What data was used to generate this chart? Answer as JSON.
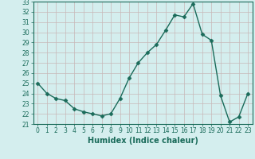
{
  "x": [
    0,
    1,
    2,
    3,
    4,
    5,
    6,
    7,
    8,
    9,
    10,
    11,
    12,
    13,
    14,
    15,
    16,
    17,
    18,
    19,
    20,
    21,
    22,
    23
  ],
  "y": [
    25.0,
    24.0,
    23.5,
    23.3,
    22.5,
    22.2,
    22.0,
    21.8,
    22.0,
    23.5,
    25.5,
    27.0,
    28.0,
    28.8,
    30.2,
    31.7,
    31.5,
    32.8,
    29.8,
    29.2,
    23.8,
    21.2,
    21.7,
    24.0
  ],
  "line_color": "#1a6b5a",
  "marker": "D",
  "marker_size": 2.5,
  "bg_color": "#d4eeee",
  "grid_color": "#c8b8b8",
  "xlabel": "Humidex (Indice chaleur)",
  "ylim": [
    21,
    33
  ],
  "xlim": [
    -0.5,
    23.5
  ],
  "yticks": [
    21,
    22,
    23,
    24,
    25,
    26,
    27,
    28,
    29,
    30,
    31,
    32,
    33
  ],
  "xticks": [
    0,
    1,
    2,
    3,
    4,
    5,
    6,
    7,
    8,
    9,
    10,
    11,
    12,
    13,
    14,
    15,
    16,
    17,
    18,
    19,
    20,
    21,
    22,
    23
  ],
  "tick_label_fontsize": 5.5,
  "xlabel_fontsize": 7,
  "tick_color": "#1a6b5a",
  "axes_color": "#1a6b5a",
  "linewidth": 1.0
}
